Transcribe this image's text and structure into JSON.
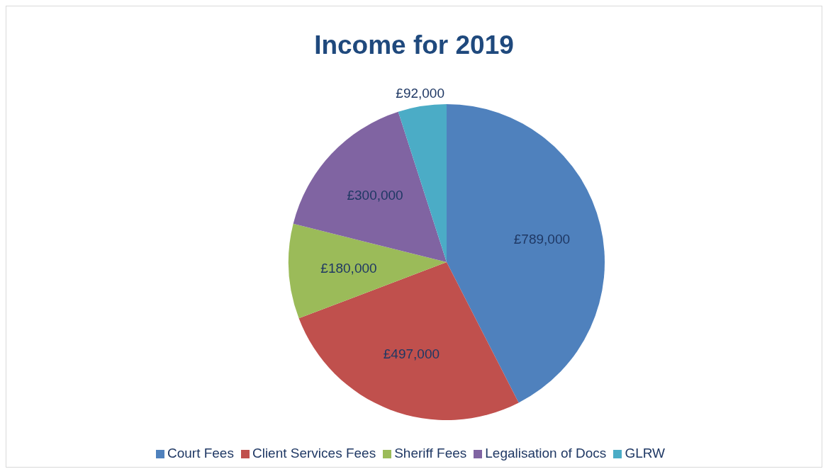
{
  "chart_data": {
    "type": "pie",
    "title": "Income for 2019",
    "categories": [
      "Court Fees",
      "Client Services Fees",
      "Sheriff Fees",
      "Legalisation of Docs",
      "GLRW"
    ],
    "values": [
      789000,
      497000,
      180000,
      300000,
      92000
    ],
    "colors": [
      "#4f81bd",
      "#c0504d",
      "#9bbb59",
      "#8064a2",
      "#4bacc6"
    ],
    "value_labels": [
      "£789,000",
      "£497,000",
      "£180,000",
      "£300,000",
      "£92,000"
    ],
    "legend": "bottom"
  }
}
